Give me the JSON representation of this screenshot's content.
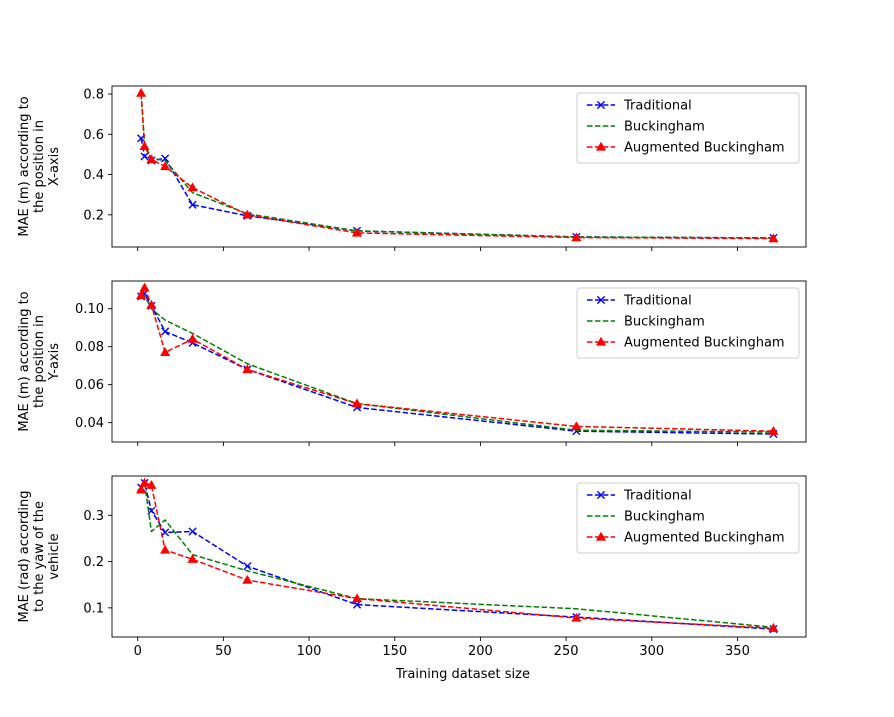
{
  "chart_data": [
    {
      "type": "line",
      "title": "",
      "xlabel": "",
      "ylabel": [
        "MAE (m) according to",
        "the position in",
        "X-axis"
      ],
      "xlim": [
        -15,
        390
      ],
      "ylim": [
        0.04,
        0.84
      ],
      "xticks": [
        0,
        50,
        100,
        150,
        200,
        250,
        300,
        350
      ],
      "xtick_labels_visible": false,
      "yticks": [
        0.2,
        0.4,
        0.6,
        0.8
      ],
      "ytick_labels": [
        "0.2",
        "0.4",
        "0.6",
        "0.8"
      ],
      "legend": "top-right",
      "series": [
        {
          "name": "Traditional",
          "color": "#0000ff",
          "marker": "x",
          "x": [
            2,
            4,
            8,
            16,
            32,
            64,
            128,
            256,
            371
          ],
          "y": [
            0.58,
            0.49,
            0.47,
            0.48,
            0.25,
            0.195,
            0.12,
            0.09,
            0.085
          ]
        },
        {
          "name": "Buckingham",
          "color": "#008000",
          "marker": "none",
          "x": [
            2,
            4,
            8,
            16,
            32,
            64,
            128,
            256,
            371
          ],
          "y": [
            0.8,
            0.55,
            0.48,
            0.47,
            0.31,
            0.205,
            0.12,
            0.09,
            0.085
          ]
        },
        {
          "name": "Augmented Buckingham",
          "color": "#ff0000",
          "marker": "^",
          "x": [
            2,
            4,
            8,
            16,
            32,
            64,
            128,
            256,
            371
          ],
          "y": [
            0.805,
            0.54,
            0.475,
            0.44,
            0.335,
            0.2,
            0.11,
            0.087,
            0.082
          ]
        }
      ]
    },
    {
      "type": "line",
      "title": "",
      "xlabel": "",
      "ylabel": [
        "MAE (m) according to",
        "the position in",
        "Y-axis"
      ],
      "xlim": [
        -15,
        390
      ],
      "ylim": [
        0.0298,
        0.1146
      ],
      "xticks": [
        0,
        50,
        100,
        150,
        200,
        250,
        300,
        350
      ],
      "xtick_labels_visible": false,
      "yticks": [
        0.04,
        0.06,
        0.08,
        0.1
      ],
      "ytick_labels": [
        "0.04",
        "0.06",
        "0.08",
        "0.10"
      ],
      "legend": "top-right",
      "series": [
        {
          "name": "Traditional",
          "color": "#0000ff",
          "marker": "x",
          "x": [
            2,
            4,
            8,
            16,
            32,
            64,
            128,
            256,
            371
          ],
          "y": [
            0.1065,
            0.108,
            0.1015,
            0.088,
            0.082,
            0.068,
            0.048,
            0.0355,
            0.034
          ]
        },
        {
          "name": "Buckingham",
          "color": "#008000",
          "marker": "none",
          "x": [
            2,
            4,
            8,
            16,
            32,
            64,
            128,
            256,
            371
          ],
          "y": [
            0.1065,
            0.107,
            0.1,
            0.094,
            0.087,
            0.071,
            0.05,
            0.036,
            0.035
          ]
        },
        {
          "name": "Augmented Buckingham",
          "color": "#ff0000",
          "marker": "^",
          "x": [
            2,
            4,
            8,
            16,
            32,
            64,
            128,
            256,
            371
          ],
          "y": [
            0.107,
            0.111,
            0.102,
            0.077,
            0.084,
            0.068,
            0.05,
            0.038,
            0.0355
          ]
        }
      ]
    },
    {
      "type": "line",
      "title": "",
      "xlabel": "Training dataset size",
      "ylabel": [
        "MAE (rad) according",
        "to the yaw of the",
        "vehicle"
      ],
      "xlim": [
        -15,
        390
      ],
      "ylim": [
        0.037,
        0.385
      ],
      "xticks": [
        0,
        50,
        100,
        150,
        200,
        250,
        300,
        350
      ],
      "xtick_labels_visible": true,
      "xtick_labels": [
        "0",
        "50",
        "100",
        "150",
        "200",
        "250",
        "300",
        "350"
      ],
      "yticks": [
        0.1,
        0.2,
        0.3
      ],
      "ytick_labels": [
        "0.1",
        "0.2",
        "0.3"
      ],
      "legend": "top-right",
      "series": [
        {
          "name": "Traditional",
          "color": "#0000ff",
          "marker": "x",
          "x": [
            2,
            4,
            8,
            16,
            32,
            64,
            128,
            256,
            371
          ],
          "y": [
            0.36,
            0.37,
            0.31,
            0.263,
            0.265,
            0.19,
            0.107,
            0.08,
            0.054
          ]
        },
        {
          "name": "Buckingham",
          "color": "#008000",
          "marker": "none",
          "x": [
            2,
            4,
            8,
            16,
            32,
            64,
            128,
            256,
            371
          ],
          "y": [
            0.355,
            0.37,
            0.265,
            0.29,
            0.215,
            0.18,
            0.12,
            0.098,
            0.058
          ]
        },
        {
          "name": "Augmented Buckingham",
          "color": "#ff0000",
          "marker": "^",
          "x": [
            2,
            4,
            8,
            16,
            32,
            64,
            128,
            256,
            371
          ],
          "y": [
            0.355,
            0.37,
            0.365,
            0.225,
            0.205,
            0.16,
            0.12,
            0.078,
            0.056
          ]
        }
      ]
    }
  ]
}
